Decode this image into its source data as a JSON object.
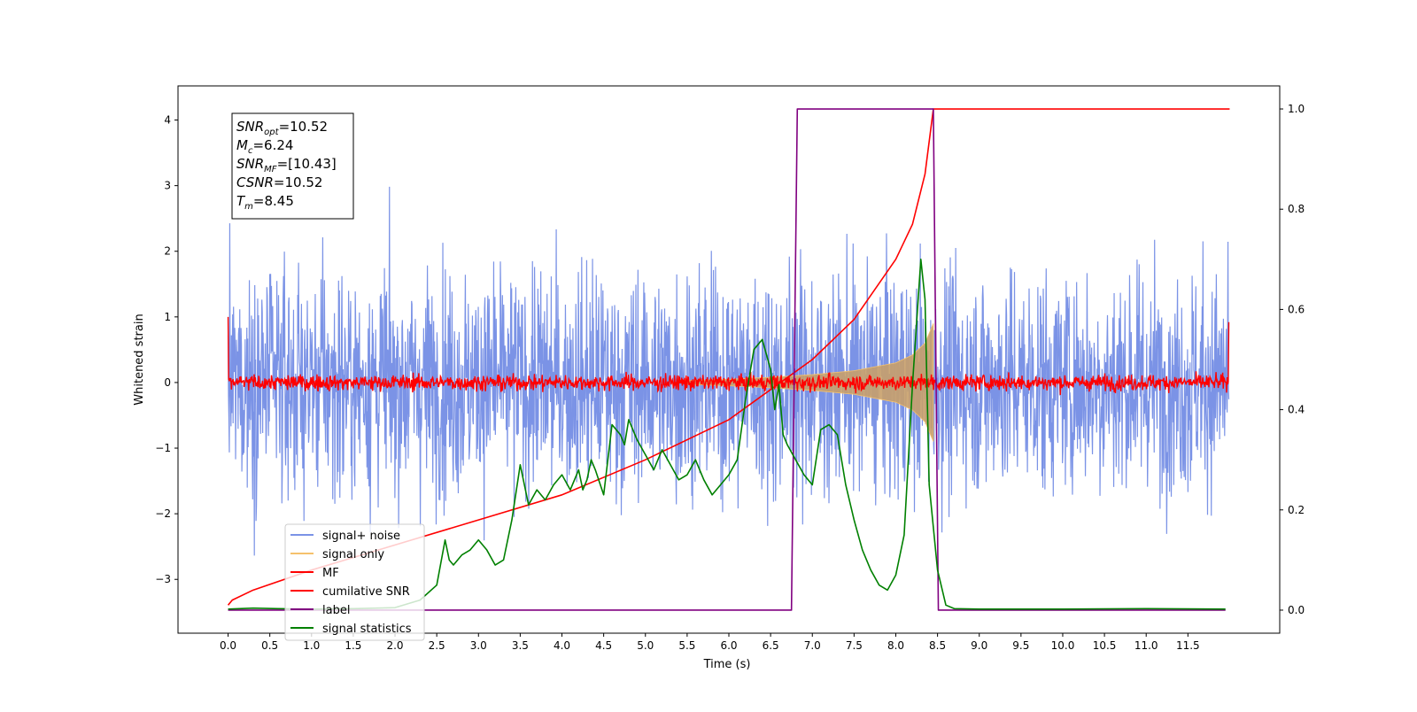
{
  "chart_data": {
    "type": "line",
    "xlabel": "Time (s)",
    "ylabel": "Whitened strain",
    "xlim": [
      -0.6,
      12.6
    ],
    "ylim": [
      -3.82,
      4.52
    ],
    "y2lim": [
      -0.046,
      1.046
    ],
    "x_ticks": [
      0.0,
      0.5,
      1.0,
      1.5,
      2.0,
      2.5,
      3.0,
      3.5,
      4.0,
      4.5,
      5.0,
      5.5,
      6.0,
      6.5,
      7.0,
      7.5,
      8.0,
      8.5,
      9.0,
      9.5,
      10.0,
      10.5,
      11.0,
      11.5
    ],
    "x_tick_labels": [
      "0.0",
      "0.5",
      "1.0",
      "1.5",
      "2.0",
      "2.5",
      "3.0",
      "3.5",
      "4.0",
      "4.5",
      "5.0",
      "5.5",
      "6.0",
      "6.5",
      "7.0",
      "7.5",
      "8.0",
      "8.5",
      "9.0",
      "9.5",
      "10.0",
      "10.5",
      "11.0",
      "11.5"
    ],
    "y_ticks": [
      -3,
      -2,
      -1,
      0,
      1,
      2,
      3,
      4
    ],
    "y_tick_labels": [
      "−3",
      "−2",
      "−1",
      "0",
      "1",
      "2",
      "3",
      "4"
    ],
    "y2_ticks": [
      0.0,
      0.2,
      0.4,
      0.6,
      0.8,
      1.0
    ],
    "y2_tick_labels": [
      "0.0",
      "0.2",
      "0.4",
      "0.6",
      "0.8",
      "1.0"
    ],
    "annotation": {
      "lines": [
        {
          "base": "SNR",
          "sub": "opt",
          "value": "=10.52"
        },
        {
          "base": "M",
          "sub": "c",
          "value": "=6.24"
        },
        {
          "base": "SNR",
          "sub": "MF",
          "value": "=[10.43]"
        },
        {
          "base": "CSNR",
          "sub": "",
          "value": "=10.52"
        },
        {
          "base": "T",
          "sub": "m",
          "value": "=8.45"
        }
      ]
    },
    "legend": {
      "position": "lower-left",
      "entries": [
        {
          "label": "signal+ noise",
          "color": "#7b93e6"
        },
        {
          "label": "signal only",
          "color": "#f5c16c"
        },
        {
          "label": "MF",
          "color": "#ff0000"
        },
        {
          "label": "cumilative SNR",
          "color": "#ff0000"
        },
        {
          "label": "label",
          "color": "#800080"
        },
        {
          "label": "signal statistics",
          "color": "#008000"
        }
      ]
    },
    "series": [
      {
        "name": "signal+ noise",
        "axis": "left",
        "color": "#7b93e6",
        "kind": "noise",
        "x_range": [
          0.0,
          11.99
        ],
        "sigma": 0.85,
        "peaks": [
          3.1,
          -3.3
        ]
      },
      {
        "name": "signal only",
        "axis": "left",
        "color": "#f5c16c",
        "kind": "chirp-envelope",
        "x": [
          5.5,
          6.0,
          6.5,
          7.0,
          7.5,
          8.0,
          8.2,
          8.35,
          8.45
        ],
        "envelope": [
          0.03,
          0.05,
          0.08,
          0.12,
          0.18,
          0.3,
          0.42,
          0.6,
          0.9
        ]
      },
      {
        "name": "MF",
        "axis": "left",
        "color": "#ff0000",
        "kind": "noise",
        "x_range": [
          0.0,
          11.99
        ],
        "sigma": 0.06,
        "end_spikes": [
          1.0,
          0.92
        ]
      },
      {
        "name": "cumilative SNR",
        "axis": "right",
        "color": "#ff0000",
        "x": [
          0.0,
          0.05,
          0.3,
          1.0,
          2.0,
          3.0,
          4.0,
          5.0,
          6.0,
          6.5,
          7.0,
          7.5,
          8.0,
          8.2,
          8.35,
          8.45,
          8.46,
          12.0
        ],
        "y": [
          0.01,
          0.02,
          0.04,
          0.08,
          0.13,
          0.18,
          0.23,
          0.3,
          0.38,
          0.44,
          0.5,
          0.58,
          0.7,
          0.77,
          0.87,
          1.0,
          1.0,
          1.0
        ]
      },
      {
        "name": "label",
        "axis": "right",
        "color": "#800080",
        "x": [
          0.0,
          6.75,
          6.82,
          8.45,
          8.51,
          11.95
        ],
        "y": [
          0.0,
          0.0,
          1.0,
          1.0,
          0.0,
          0.0
        ]
      },
      {
        "name": "signal statistics",
        "axis": "right",
        "color": "#008000",
        "x": [
          0.0,
          0.3,
          0.6,
          1.0,
          1.5,
          2.0,
          2.3,
          2.5,
          2.6,
          2.65,
          2.7,
          2.8,
          2.9,
          3.0,
          3.1,
          3.2,
          3.3,
          3.4,
          3.5,
          3.55,
          3.6,
          3.7,
          3.8,
          3.9,
          4.0,
          4.1,
          4.2,
          4.25,
          4.3,
          4.35,
          4.4,
          4.5,
          4.6,
          4.7,
          4.75,
          4.8,
          4.9,
          5.0,
          5.1,
          5.2,
          5.3,
          5.4,
          5.5,
          5.6,
          5.7,
          5.8,
          5.9,
          6.0,
          6.1,
          6.2,
          6.3,
          6.4,
          6.5,
          6.55,
          6.6,
          6.65,
          6.7,
          6.8,
          6.9,
          7.0,
          7.1,
          7.2,
          7.3,
          7.4,
          7.5,
          7.6,
          7.7,
          7.8,
          7.9,
          8.0,
          8.1,
          8.2,
          8.3,
          8.35,
          8.4,
          8.5,
          8.6,
          8.7,
          9.0,
          10.0,
          11.0,
          11.95
        ],
        "y": [
          0.002,
          0.004,
          0.003,
          0.002,
          0.003,
          0.005,
          0.02,
          0.05,
          0.14,
          0.1,
          0.09,
          0.11,
          0.12,
          0.14,
          0.12,
          0.09,
          0.1,
          0.18,
          0.29,
          0.25,
          0.21,
          0.24,
          0.22,
          0.25,
          0.27,
          0.24,
          0.28,
          0.24,
          0.26,
          0.3,
          0.28,
          0.23,
          0.37,
          0.35,
          0.33,
          0.38,
          0.34,
          0.31,
          0.28,
          0.32,
          0.29,
          0.26,
          0.27,
          0.3,
          0.26,
          0.23,
          0.25,
          0.27,
          0.3,
          0.42,
          0.52,
          0.54,
          0.48,
          0.4,
          0.45,
          0.35,
          0.33,
          0.3,
          0.27,
          0.25,
          0.36,
          0.37,
          0.35,
          0.25,
          0.18,
          0.12,
          0.08,
          0.05,
          0.04,
          0.07,
          0.15,
          0.45,
          0.7,
          0.62,
          0.25,
          0.08,
          0.01,
          0.003,
          0.002,
          0.002,
          0.003,
          0.002
        ]
      }
    ]
  }
}
